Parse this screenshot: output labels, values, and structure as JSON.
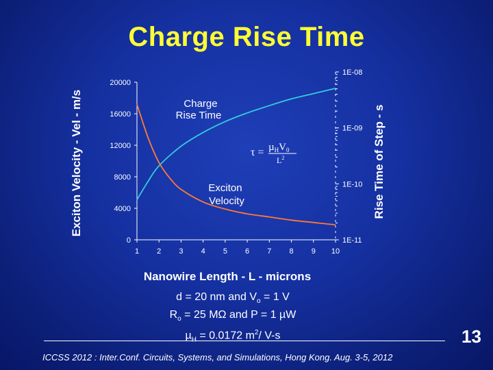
{
  "slide": {
    "title": "Charge Rise Time",
    "param_line1": "d = 20 nm  and V",
    "param_line1_sub": "o",
    "param_line1_end": " = 1 V",
    "param_line2_a": "R",
    "param_line2_sub": "o",
    "param_line2_b": " = 25 MΩ and  P = 1 µW",
    "param_line3_a": "µ",
    "param_line3_sub": "H",
    "param_line3_b": " = 0.0172  m",
    "param_line3_sup": "2",
    "param_line3_c": "/ V-s",
    "footer": "ICCSS 2012 : Inter.Conf. Circuits, Systems, and Simulations, Hong Kong. Aug. 3-5, 2012",
    "page_number": "13"
  },
  "chart_data": {
    "type": "line",
    "xlabel": "Nanowire Length - L - microns",
    "ylabel_left": "Exciton Velocity - Vel -  m/s",
    "ylabel_right": "Rise Time of Step - s",
    "x_ticks": [
      1,
      2,
      3,
      4,
      5,
      6,
      7,
      8,
      9,
      10
    ],
    "xlim": [
      1,
      10
    ],
    "y_left_ticks": [
      0,
      4000,
      8000,
      12000,
      16000,
      20000
    ],
    "y_left_tick_labels": [
      "0",
      "4000",
      "8000",
      "12000",
      "16000",
      "20000"
    ],
    "ylim_left": [
      0,
      20000
    ],
    "y_right_ticks": [
      1e-11,
      1e-10,
      1e-09,
      1e-08
    ],
    "y_right_tick_labels": [
      "1E-11",
      "1E-10",
      "1E-09",
      "1E-08"
    ],
    "ylim_right": [
      1e-11,
      1e-08
    ],
    "y_right_scale": "log",
    "series": [
      {
        "name": "Exciton Velocity",
        "axis": "left",
        "color": "#ff7a33",
        "x": [
          1,
          1.5,
          2,
          2.5,
          3,
          4,
          5,
          6,
          7,
          8,
          9,
          10
        ],
        "y": [
          17200,
          13000,
          9800,
          7800,
          6400,
          4800,
          3900,
          3300,
          2900,
          2500,
          2200,
          1900
        ]
      },
      {
        "name": "Charge Rise Time",
        "axis": "right",
        "color": "#33ccdd",
        "x": [
          1,
          1.5,
          2,
          3,
          4,
          5,
          6,
          7,
          8,
          9,
          10
        ],
        "y": [
          5.2e-11,
          1.1e-10,
          2.1e-10,
          4.7e-10,
          8.3e-10,
          1.3e-09,
          1.85e-09,
          2.5e-09,
          3.3e-09,
          4.1e-09,
          5.1e-09
        ]
      }
    ],
    "annotations": {
      "charge_label_1": "Charge",
      "charge_label_2": "Rise Time",
      "exciton_label_1": "Exciton",
      "exciton_label_2": "Velocity",
      "formula_lhs": "τ =",
      "formula_num_a": "µ",
      "formula_num_sub": "H",
      "formula_num_b": "V",
      "formula_num_sub2": "0",
      "formula_den": "L",
      "formula_den_sup": "2"
    },
    "grid": false,
    "legend": "none"
  }
}
